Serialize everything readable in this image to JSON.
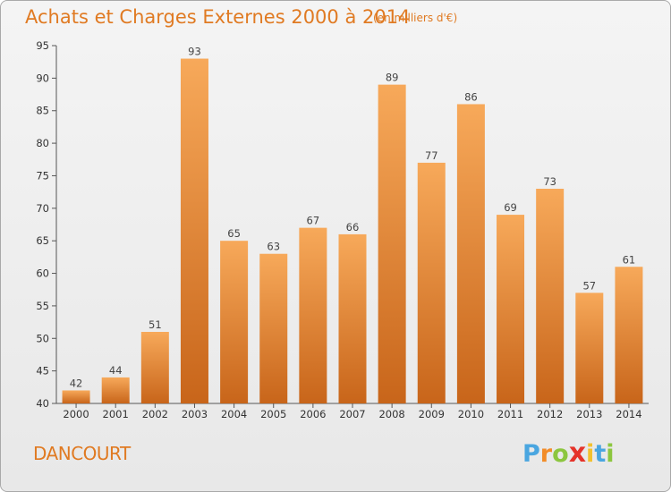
{
  "header": {
    "title": "Achats et Charges Externes 2000 à 2014",
    "subtitle": "(en milliers d'€)"
  },
  "footer": {
    "commune": "DANCOURT",
    "logo_letters": [
      "P",
      "r",
      "o",
      "x",
      "i",
      "t",
      "i"
    ],
    "logo_colors": [
      "#4aa6e0",
      "#f28c28",
      "#8cc63f",
      "#e5332a",
      "#f2c12e",
      "#4aa6e0",
      "#8cc63f"
    ]
  },
  "chart_data": {
    "type": "bar",
    "title": "Achats et Charges Externes 2000 à 2014",
    "categories": [
      "2000",
      "2001",
      "2002",
      "2003",
      "2004",
      "2005",
      "2006",
      "2007",
      "2008",
      "2009",
      "2010",
      "2011",
      "2012",
      "2013",
      "2014"
    ],
    "values": [
      42,
      44,
      51,
      93,
      65,
      63,
      67,
      66,
      89,
      77,
      86,
      69,
      73,
      57,
      61
    ],
    "ylim": [
      40,
      95
    ],
    "yticks": [
      40,
      45,
      50,
      55,
      60,
      65,
      70,
      75,
      80,
      85,
      90,
      95
    ],
    "grid": false,
    "bar_color_top": "#f7a95a",
    "bar_color_bottom": "#c8651a"
  }
}
